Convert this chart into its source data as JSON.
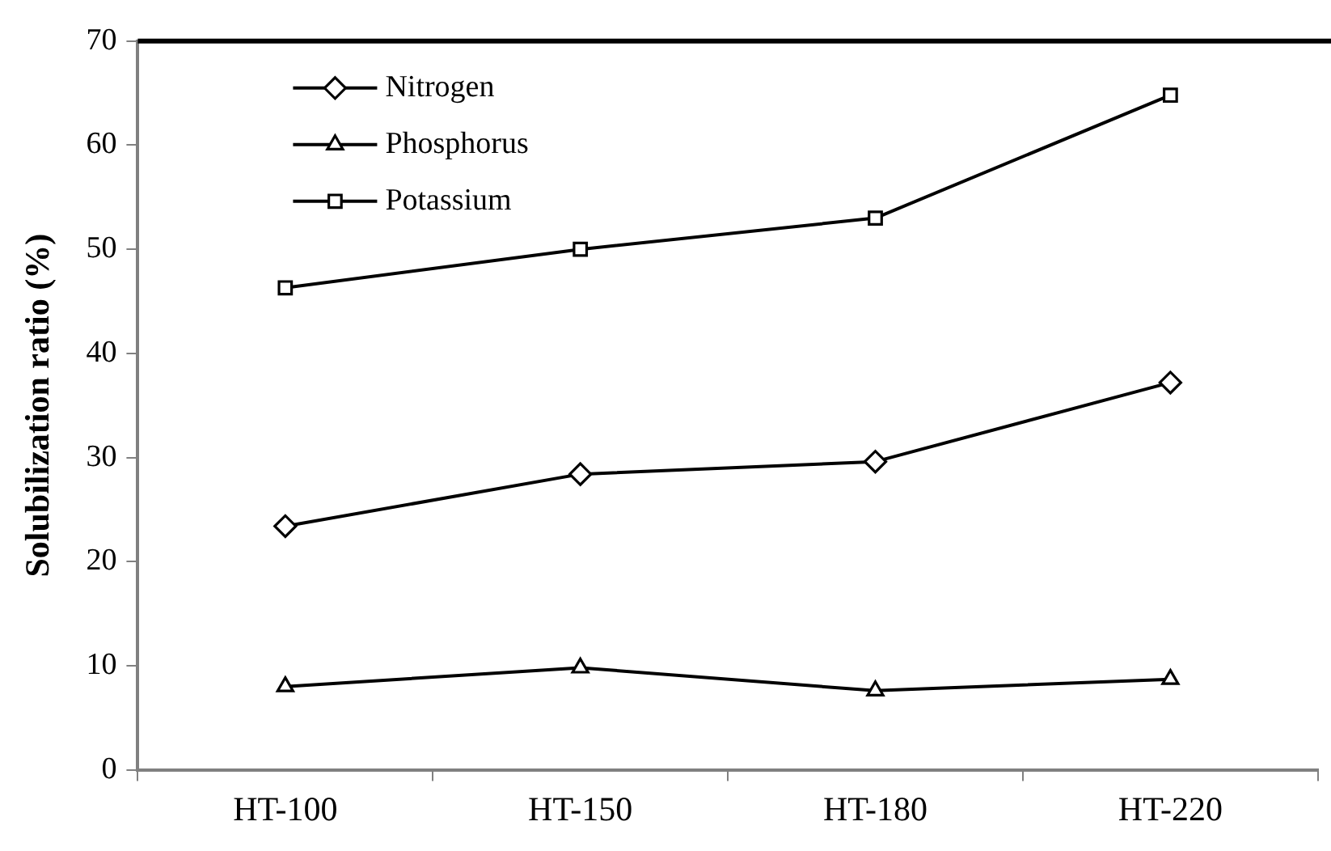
{
  "chart_data": {
    "type": "line",
    "ylabel": "Solubilization ratio (%)",
    "categories": [
      "HT-100",
      "HT-150",
      "HT-180",
      "HT-220"
    ],
    "series": [
      {
        "name": "Nitrogen",
        "color": "#000000",
        "marker": "diamond",
        "values": [
          23.4,
          28.4,
          29.6,
          37.2
        ]
      },
      {
        "name": "Phosphorus",
        "color": "#000000",
        "marker": "triangle",
        "values": [
          8.0,
          9.8,
          7.6,
          8.7
        ]
      },
      {
        "name": "Potassium",
        "color": "#000000",
        "marker": "square",
        "values": [
          46.3,
          50.0,
          53.0,
          64.8
        ]
      }
    ],
    "ylim": [
      0,
      70
    ],
    "yticks": [
      0,
      10,
      20,
      30,
      40,
      50,
      60,
      70
    ],
    "grid": false,
    "legend": "top left",
    "line_style": "solid"
  }
}
